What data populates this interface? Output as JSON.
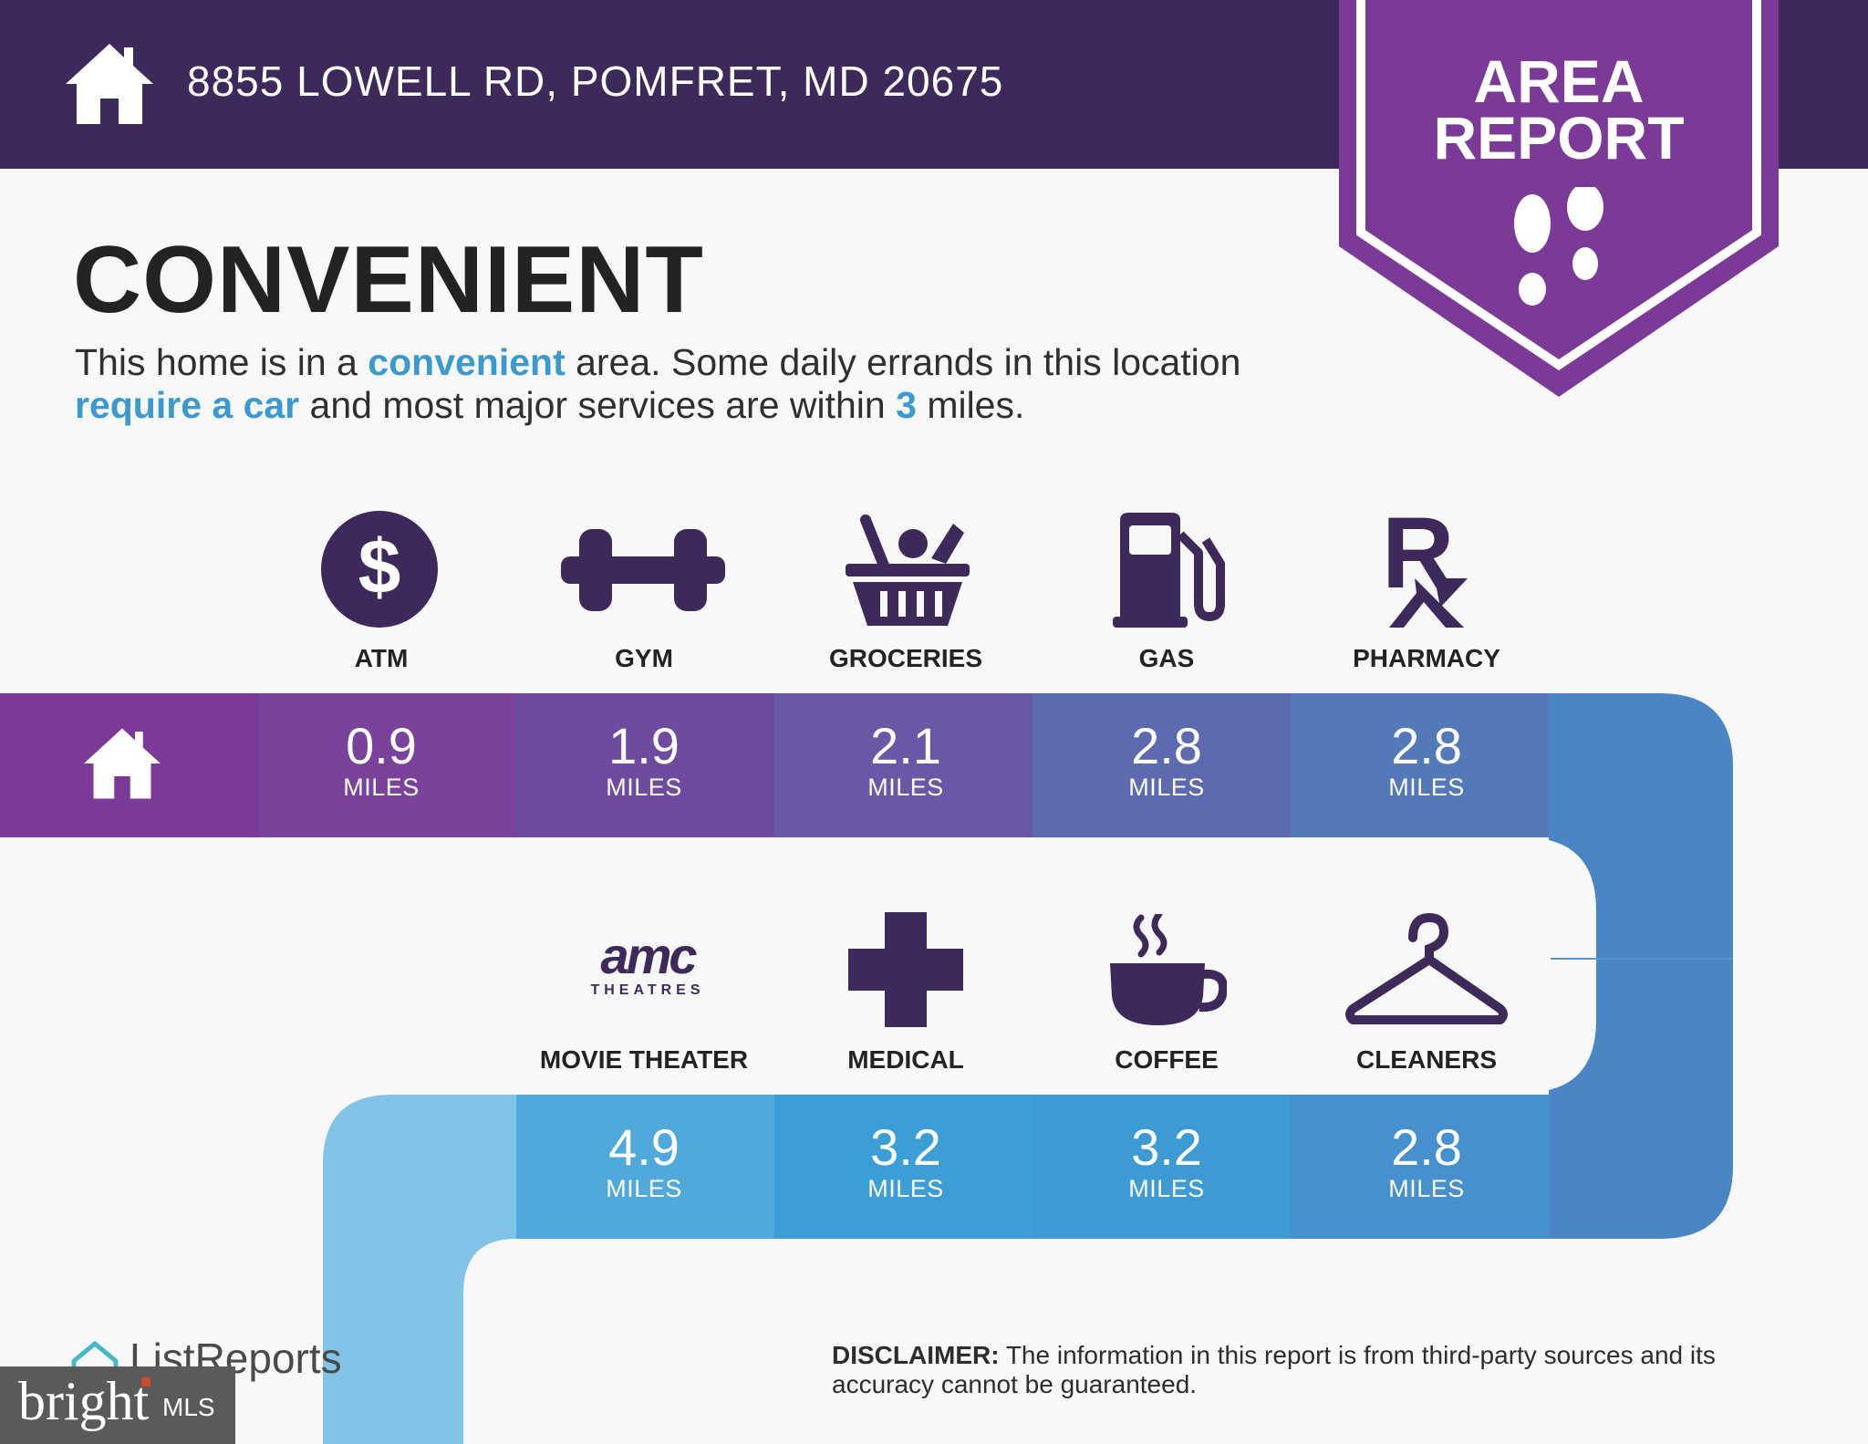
{
  "header": {
    "address": "8855 LOWELL RD, POMFRET, MD 20675",
    "banner_line1": "AREA",
    "banner_line2": "REPORT"
  },
  "title": "CONVENIENT",
  "description": {
    "p1": "This home is in a ",
    "h1": "convenient",
    "p2": " area. Some daily errands in this location ",
    "h2": "require a car",
    "p3": " and most major services are within ",
    "h3": "3",
    "p4": " miles."
  },
  "row1": [
    {
      "label": "ATM",
      "value": "0.9",
      "unit": "MILES",
      "icon": "dollar-icon"
    },
    {
      "label": "GYM",
      "value": "1.9",
      "unit": "MILES",
      "icon": "dumbbell-icon"
    },
    {
      "label": "GROCERIES",
      "value": "2.1",
      "unit": "MILES",
      "icon": "grocery-basket-icon"
    },
    {
      "label": "GAS",
      "value": "2.8",
      "unit": "MILES",
      "icon": "gas-pump-icon"
    },
    {
      "label": "PHARMACY",
      "value": "2.8",
      "unit": "MILES",
      "icon": "rx-icon"
    }
  ],
  "row2": [
    {
      "label": "MOVIE THEATER",
      "value": "4.9",
      "unit": "MILES",
      "icon": "amc-theatres-logo",
      "logo_text": "amc",
      "logo_sub": "THEATRES"
    },
    {
      "label": "MEDICAL",
      "value": "3.2",
      "unit": "MILES",
      "icon": "medical-cross-icon"
    },
    {
      "label": "COFFEE",
      "value": "3.2",
      "unit": "MILES",
      "icon": "coffee-cup-icon"
    },
    {
      "label": "CLEANERS",
      "value": "2.8",
      "unit": "MILES",
      "icon": "hanger-icon"
    }
  ],
  "footer": {
    "listreports": "ListReports",
    "bright": "bright",
    "mls": "MLS",
    "disclaimer_label": "DISCLAIMER:",
    "disclaimer_text": " The information in this report is from third-party sources and its accuracy cannot be guaranteed."
  },
  "colors": {
    "header": "#3d2a5a",
    "banner": "#7b3a97",
    "icon": "#3d2a5a",
    "highlight": "#3a9ad0"
  }
}
